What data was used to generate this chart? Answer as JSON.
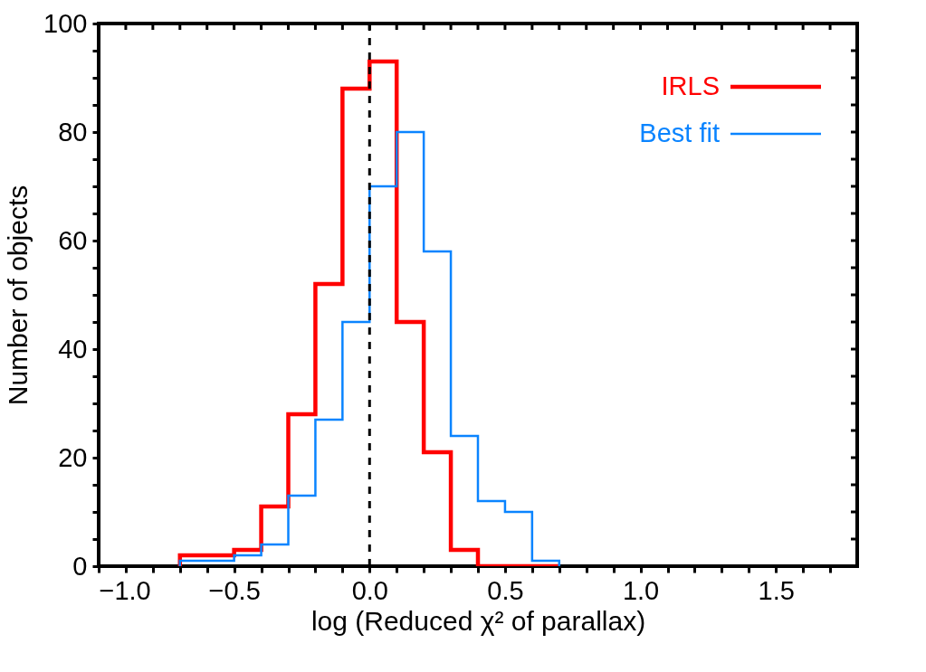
{
  "chart_data": {
    "type": "histogram",
    "xlabel": "log (Reduced χ² of parallax)",
    "ylabel": "Number of objects",
    "bins": [
      -0.7,
      -0.6,
      -0.5,
      -0.4,
      -0.3,
      -0.2,
      -0.1,
      0.0,
      0.1,
      0.2,
      0.3,
      0.4,
      0.5,
      0.6,
      0.7
    ],
    "series": [
      {
        "name": "IRLS",
        "color": "#ff0000",
        "values": [
          2,
          2,
          3,
          11,
          28,
          52,
          88,
          93,
          45,
          21,
          3,
          0,
          0,
          0
        ]
      },
      {
        "name": "Best fit",
        "color": "#0a84ff",
        "values": [
          1,
          1,
          2,
          4,
          13,
          27,
          45,
          70,
          80,
          58,
          24,
          12,
          10,
          1
        ]
      }
    ],
    "xlim": [
      -1.0,
      1.8
    ],
    "ylim": [
      0,
      100
    ],
    "xticks": [
      {
        "value": -1.0,
        "label": "−1.0"
      },
      {
        "value": -0.9,
        "label": null
      },
      {
        "value": -0.8,
        "label": null
      },
      {
        "value": -0.7,
        "label": null
      },
      {
        "value": -0.6,
        "label": null
      },
      {
        "value": -0.5,
        "label": "−0.5"
      },
      {
        "value": -0.4,
        "label": null
      },
      {
        "value": -0.3,
        "label": null
      },
      {
        "value": -0.2,
        "label": null
      },
      {
        "value": -0.1,
        "label": null
      },
      {
        "value": 0.0,
        "label": "0.0"
      },
      {
        "value": 0.1,
        "label": null
      },
      {
        "value": 0.2,
        "label": null
      },
      {
        "value": 0.3,
        "label": null
      },
      {
        "value": 0.4,
        "label": null
      },
      {
        "value": 0.5,
        "label": "0.5"
      },
      {
        "value": 0.6,
        "label": null
      },
      {
        "value": 0.7,
        "label": null
      },
      {
        "value": 0.8,
        "label": null
      },
      {
        "value": 0.9,
        "label": null
      },
      {
        "value": 1.0,
        "label": "1.0"
      },
      {
        "value": 1.1,
        "label": null
      },
      {
        "value": 1.2,
        "label": null
      },
      {
        "value": 1.3,
        "label": null
      },
      {
        "value": 1.4,
        "label": null
      },
      {
        "value": 1.5,
        "label": "1.5"
      },
      {
        "value": 1.6,
        "label": null
      },
      {
        "value": 1.7,
        "label": null
      }
    ],
    "yticks": [
      0,
      {
        "value": 5,
        "label": null
      },
      {
        "value": 10,
        "label": null
      },
      {
        "value": 15,
        "label": null
      },
      20,
      {
        "value": 25,
        "label": null
      },
      {
        "value": 30,
        "label": null
      },
      {
        "value": 35,
        "label": null
      },
      40,
      {
        "value": 45,
        "label": null
      },
      {
        "value": 50,
        "label": null
      },
      {
        "value": 55,
        "label": null
      },
      60,
      {
        "value": 65,
        "label": null
      },
      {
        "value": 70,
        "label": null
      },
      {
        "value": 75,
        "label": null
      },
      80,
      {
        "value": 85,
        "label": null
      },
      {
        "value": 90,
        "label": null
      },
      {
        "value": 95,
        "label": null
      },
      100
    ],
    "ref_lines": [
      {
        "axis": "x",
        "value": 0.0,
        "color": "#000000",
        "line_style": "dashed"
      }
    ],
    "legend": "top right",
    "grid": false
  }
}
